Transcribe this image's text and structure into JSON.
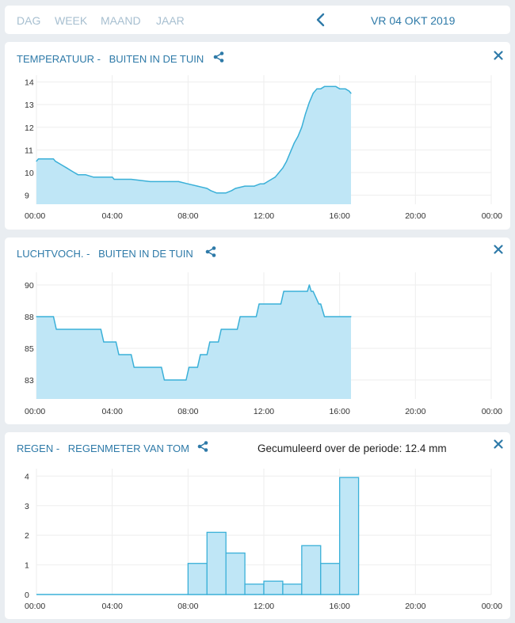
{
  "tabs": [
    {
      "label": "DAG",
      "active": true
    },
    {
      "label": "WEEK",
      "active": false
    },
    {
      "label": "MAAND",
      "active": false
    },
    {
      "label": "JAAR",
      "active": false
    }
  ],
  "date_label": "VR 04 OKT 2019",
  "colors": {
    "accent": "#2e7aa8",
    "fill": "#bfe6f6",
    "line": "#3ab0d8",
    "grid": "#eeeeee"
  },
  "icons": {
    "prev": "chevron-left-icon",
    "share": "share-icon",
    "close": "close-icon"
  },
  "panels": [
    {
      "title_metric": "TEMPERATUUR -",
      "title_sensor": "BUITEN IN DE TUIN"
    },
    {
      "title_metric": "LUCHTVOCH. -",
      "title_sensor": "BUITEN IN DE TUIN"
    },
    {
      "title_metric": "REGEN -",
      "title_sensor": "REGENMETER VAN TOM",
      "summary": "Gecumuleerd over de periode: 12.4 mm"
    }
  ],
  "chart_data": [
    {
      "type": "area",
      "x_ticks": [
        "00:00",
        "04:00",
        "08:00",
        "12:00",
        "16:00",
        "20:00",
        "00:00"
      ],
      "y_ticks": [
        "9",
        "10",
        "11",
        "12",
        "13",
        "14"
      ],
      "xlim": [
        0,
        24
      ],
      "ylim": [
        8.6,
        14.3
      ],
      "x": [
        0,
        0.1,
        0.2,
        0.3,
        0.9,
        1,
        1.2,
        1.4,
        1.6,
        1.8,
        2,
        2.2,
        2.6,
        3,
        3.5,
        4,
        4.1,
        4.3,
        5,
        6,
        7,
        7.5,
        8,
        8.5,
        9,
        9.2,
        9.5,
        10,
        10.3,
        10.5,
        11,
        11.5,
        11.8,
        12,
        12.2,
        12.4,
        12.6,
        12.8,
        13,
        13.2,
        13.4,
        13.6,
        13.8,
        14,
        14.2,
        14.4,
        14.6,
        14.8,
        15,
        15.2,
        15.4,
        15.6,
        15.8,
        16,
        16.1,
        16.3,
        16.5,
        16.6
      ],
      "values": [
        10.5,
        10.6,
        10.6,
        10.6,
        10.6,
        10.5,
        10.4,
        10.3,
        10.2,
        10.1,
        10.0,
        9.9,
        9.9,
        9.8,
        9.8,
        9.8,
        9.7,
        9.7,
        9.7,
        9.6,
        9.6,
        9.6,
        9.5,
        9.4,
        9.3,
        9.2,
        9.1,
        9.1,
        9.2,
        9.3,
        9.4,
        9.4,
        9.5,
        9.5,
        9.6,
        9.7,
        9.8,
        10.0,
        10.2,
        10.5,
        10.9,
        11.3,
        11.6,
        12.0,
        12.6,
        13.1,
        13.5,
        13.7,
        13.7,
        13.8,
        13.8,
        13.8,
        13.8,
        13.7,
        13.7,
        13.7,
        13.6,
        13.5
      ]
    },
    {
      "type": "area",
      "x_ticks": [
        "00:00",
        "04:00",
        "08:00",
        "12:00",
        "16:00",
        "20:00",
        "00:00"
      ],
      "y_ticks": [
        "83",
        "85",
        "88",
        "90"
      ],
      "y_tick_values": [
        82.5,
        85,
        87.5,
        90
      ],
      "xlim": [
        0,
        24
      ],
      "ylim": [
        81,
        91
      ],
      "x": [
        0,
        0.9,
        1.05,
        3.4,
        3.55,
        4.2,
        4.35,
        5,
        5.15,
        6.6,
        6.75,
        7.9,
        8.05,
        8.5,
        8.65,
        9,
        9.15,
        9.6,
        9.75,
        10.6,
        10.75,
        11.6,
        11.75,
        12.9,
        13.05,
        14.3,
        14.4,
        14.5,
        14.6,
        14.9,
        15,
        15.2,
        15.3,
        16.6
      ],
      "values": [
        87.5,
        87.5,
        86.5,
        86.5,
        85.5,
        85.5,
        84.5,
        84.5,
        83.5,
        83.5,
        82.5,
        82.5,
        83.5,
        83.5,
        84.5,
        84.5,
        85.5,
        85.5,
        86.5,
        86.5,
        87.5,
        87.5,
        88.5,
        88.5,
        89.5,
        89.5,
        90.0,
        89.5,
        89.5,
        88.5,
        88.5,
        87.5,
        87.5,
        87.5
      ]
    },
    {
      "type": "bar",
      "x_ticks": [
        "00:00",
        "04:00",
        "08:00",
        "12:00",
        "16:00",
        "20:00",
        "00:00"
      ],
      "y_ticks": [
        "0",
        "1",
        "2",
        "3",
        "4"
      ],
      "xlim": [
        0,
        24
      ],
      "ylim": [
        0,
        4.25
      ],
      "bar_width_hours": 1,
      "x": [
        8,
        9,
        10,
        11,
        12,
        13,
        14,
        15,
        16
      ],
      "values": [
        1.05,
        2.1,
        1.4,
        0.35,
        0.45,
        0.35,
        1.65,
        1.05,
        3.95
      ]
    }
  ]
}
